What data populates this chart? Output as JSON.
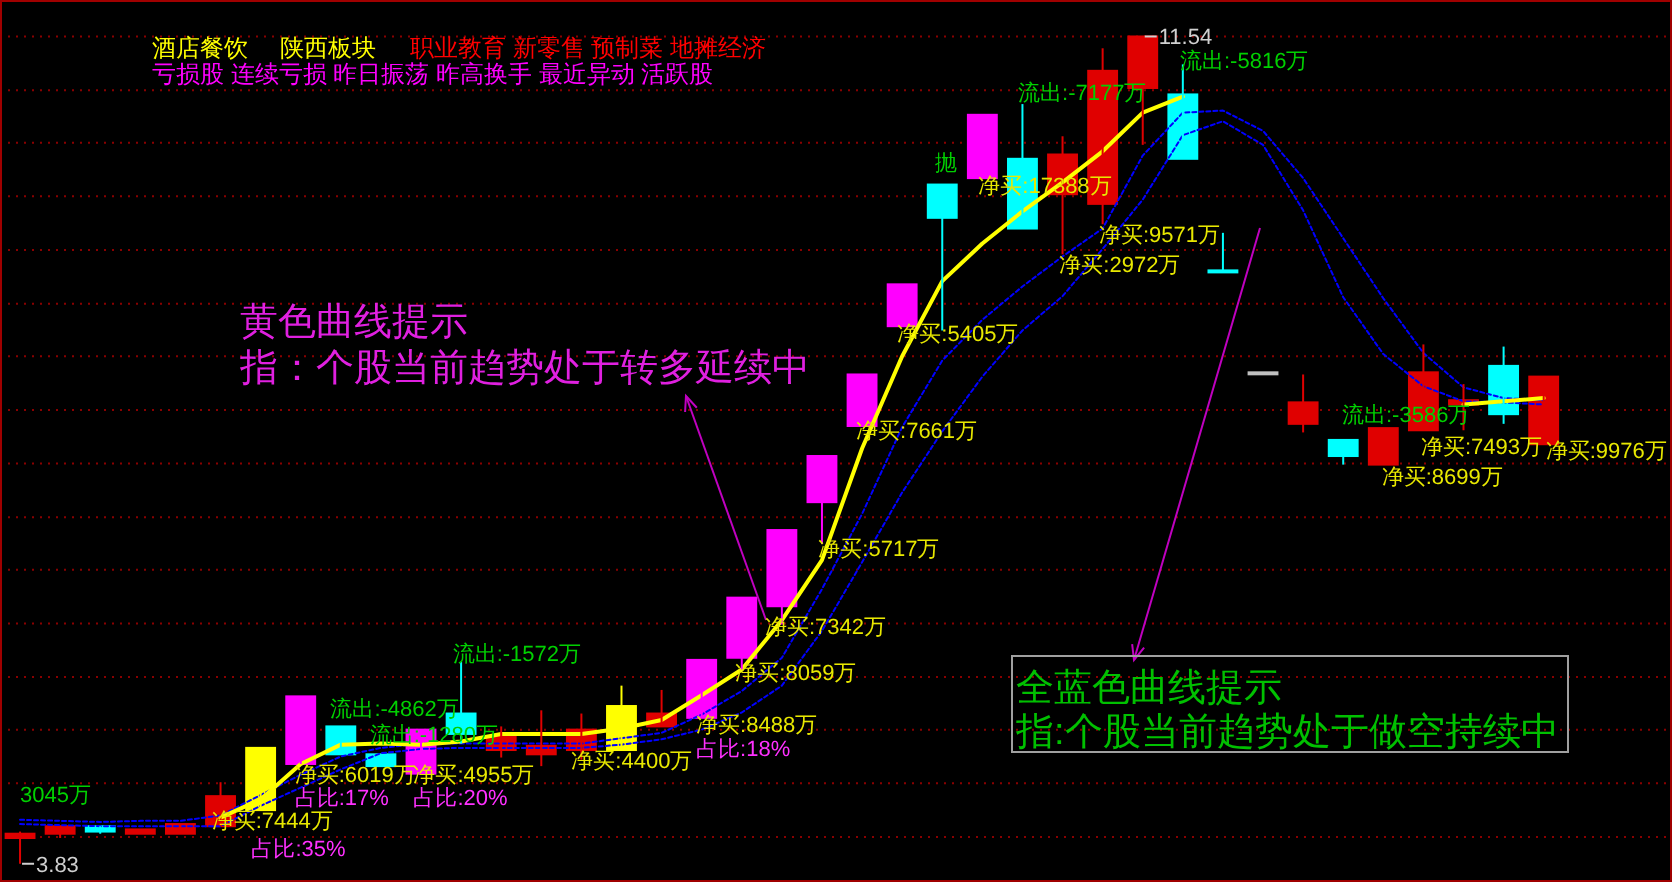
{
  "chart_data": {
    "type": "candlestick",
    "categories": [
      null,
      null,
      null,
      null,
      null,
      null,
      null,
      null,
      null,
      null,
      null,
      null,
      null,
      null,
      null,
      null,
      null,
      null,
      null,
      null,
      null,
      null,
      null,
      null,
      null,
      null,
      null,
      null,
      null,
      null,
      null,
      null,
      null,
      null,
      null,
      null,
      null,
      null,
      null
    ],
    "ohlc": [
      [
        4.07,
        4.13,
        3.83,
        4.11
      ],
      [
        4.11,
        4.18,
        4.07,
        4.18
      ],
      [
        4.18,
        4.18,
        4.11,
        4.13
      ],
      [
        4.11,
        4.15,
        4.11,
        4.15
      ],
      [
        4.11,
        4.2,
        4.11,
        4.2
      ],
      [
        4.18,
        4.59,
        4.18,
        4.46
      ],
      [
        4.33,
        4.91,
        4.33,
        4.91
      ],
      [
        4.76,
        5.39,
        4.76,
        5.39
      ],
      [
        5.11,
        5.11,
        4.85,
        4.85
      ],
      [
        4.85,
        4.85,
        4.74,
        4.74
      ],
      [
        4.67,
        5.08,
        4.67,
        5.08
      ],
      [
        5.23,
        5.71,
        4.95,
        5.04
      ],
      [
        4.89,
        5.11,
        4.82,
        5.02
      ],
      [
        4.85,
        5.26,
        4.74,
        4.93
      ],
      [
        4.89,
        5.23,
        4.8,
        5.08
      ],
      [
        4.89,
        5.49,
        4.89,
        5.3
      ],
      [
        5.11,
        5.45,
        5.11,
        5.23
      ],
      [
        5.19,
        5.73,
        5.19,
        5.73
      ],
      [
        5.75,
        6.31,
        5.64,
        6.31
      ],
      [
        6.23,
        6.94,
        6.06,
        6.94
      ],
      [
        7.2,
        7.63,
        6.81,
        7.63
      ],
      [
        7.91,
        8.39,
        7.91,
        8.39
      ],
      [
        8.84,
        9.23,
        8.84,
        9.23
      ],
      [
        10.16,
        10.16,
        8.8,
        9.85
      ],
      [
        10.22,
        10.81,
        10.22,
        10.81
      ],
      [
        10.4,
        10.91,
        9.75,
        9.75
      ],
      [
        10.07,
        10.61,
        9.51,
        10.44
      ],
      [
        9.98,
        11.43,
        9.79,
        11.22
      ],
      [
        11.06,
        11.54,
        10.53,
        11.54
      ],
      [
        11.0,
        11.28,
        10.4,
        10.4
      ],
      [
        9.36,
        9.71,
        9.36,
        9.36
      ],
      [
        8.41,
        8.41,
        8.41,
        8.41
      ],
      [
        7.93,
        8.39,
        7.85,
        8.13
      ],
      [
        7.78,
        7.78,
        7.55,
        7.63
      ],
      [
        7.55,
        7.89,
        7.55,
        7.89
      ],
      [
        7.87,
        8.67,
        7.87,
        8.41
      ],
      [
        8.11,
        8.3,
        7.87,
        8.15
      ],
      [
        8.47,
        8.65,
        7.93,
        8.02
      ],
      [
        7.74,
        8.37,
        7.74,
        8.37
      ]
    ],
    "colors": [
      "#e00000",
      "#e00000",
      "#00ffff",
      "#e00000",
      "#e00000",
      "#e00000",
      "#ffff00",
      "#ff00ff",
      "#00ffff",
      "#00ffff",
      "#ff00ff",
      "#00ffff",
      "#e00000",
      "#e00000",
      "#e00000",
      "#ffff00",
      "#e00000",
      "#ff00ff",
      "#ff00ff",
      "#ff00ff",
      "#ff00ff",
      "#ff00ff",
      "#ff00ff",
      "#00ffff",
      "#ff00ff",
      "#00ffff",
      "#e00000",
      "#e00000",
      "#e00000",
      "#00ffff",
      "#00ffff",
      "#c0c0c0",
      "#e00000",
      "#00ffff",
      "#e00000",
      "#e00000",
      "#e00000",
      "#00ffff",
      "#e00000"
    ],
    "ylim": [
      3.66,
      11.88
    ],
    "yticks": [
      {
        "value": 11.54,
        "label": null
      },
      {
        "value": 11.04,
        "label": null
      },
      {
        "value": 10.55,
        "label": null
      },
      {
        "value": 10.05,
        "label": null
      },
      {
        "value": 9.55,
        "label": null
      },
      {
        "value": 9.05,
        "label": null
      },
      {
        "value": 8.56,
        "label": null
      },
      {
        "value": 8.06,
        "label": null
      },
      {
        "value": 7.56,
        "label": null
      },
      {
        "value": 7.06,
        "label": null
      },
      {
        "value": 6.57,
        "label": null
      },
      {
        "value": 6.07,
        "label": null
      },
      {
        "value": 5.57,
        "label": null
      },
      {
        "value": 5.08,
        "label": null
      },
      {
        "value": 4.58,
        "label": null
      },
      {
        "value": 4.08,
        "label": null
      }
    ],
    "grid": "y",
    "series": [
      {
        "type": "line",
        "color": "#0000ff",
        "line_style": "dotted",
        "values": [
          4.24,
          4.23,
          4.22,
          4.23,
          4.23,
          4.28,
          4.47,
          4.66,
          4.83,
          4.91,
          4.95,
          4.95,
          4.95,
          4.95,
          4.95,
          5.0,
          5.05,
          5.22,
          5.44,
          5.75,
          6.39,
          7.09,
          7.9,
          8.52,
          8.9,
          9.21,
          9.49,
          9.75,
          10.43,
          10.83,
          10.85,
          10.66,
          10.22,
          9.66,
          9.1,
          8.59,
          8.27,
          8.17,
          8.15
        ]
      },
      {
        "type": "line",
        "color": "#0000ff",
        "line_style": "dotted",
        "values": [
          4.2,
          4.19,
          4.18,
          4.18,
          4.18,
          4.18,
          4.37,
          4.54,
          4.71,
          4.86,
          4.9,
          4.91,
          4.91,
          4.91,
          4.91,
          4.94,
          4.99,
          5.08,
          5.24,
          5.49,
          6.0,
          6.64,
          7.29,
          7.86,
          8.37,
          8.8,
          9.12,
          9.56,
          10.02,
          10.62,
          10.75,
          10.53,
          9.92,
          9.11,
          8.58,
          8.28,
          8.14,
          8.13,
          8.11
        ]
      },
      {
        "type": "line",
        "color": "#ffff00",
        "line_style": "solid",
        "values": [
          null,
          null,
          null,
          null,
          null,
          4.26,
          4.43,
          4.76,
          4.94,
          4.95,
          4.94,
          4.97,
          5.04,
          5.04,
          5.04,
          5.09,
          5.17,
          5.4,
          5.64,
          6.1,
          6.66,
          7.7,
          8.56,
          9.26,
          9.61,
          9.91,
          10.18,
          10.47,
          10.83,
          10.98,
          null,
          null,
          null,
          null,
          null,
          null,
          8.11,
          8.14,
          8.17
        ]
      }
    ],
    "annotations": [
      "酒店餐饮",
      "陕西板块",
      "职业教育 新零售 预制菜 地摊经济",
      "亏损股 连续亏损 昨日振荡 昨高换手 最近异动 活跃股",
      "黄色曲线提示",
      "指：个股当前趋势处于转多延续中",
      "全蓝色曲线提示",
      "指:个股当前趋势处于做空持续中",
      "11.54",
      "3.83",
      "3045万",
      "流出:-4862万",
      "流出:-1280万",
      "流出:-1572万",
      "抛",
      "流出:-7177万",
      "流出:-5816万",
      "流出:-3586万",
      "净买:7444万",
      "净买:6019万",
      "净买:4955万",
      "净买:4400万",
      "净买:8488万",
      "净买:8059万",
      "净买:7342万",
      "净买:5717万",
      "净买:7661万",
      "净买:5405万",
      "净买:17388万",
      "净买:9571万",
      "净买:2972万",
      "净买:7493万",
      "净买:8699万",
      "净买:9976万",
      "占比:35%",
      "占比:17%",
      "占比:20%",
      "占比:18%"
    ]
  }
}
